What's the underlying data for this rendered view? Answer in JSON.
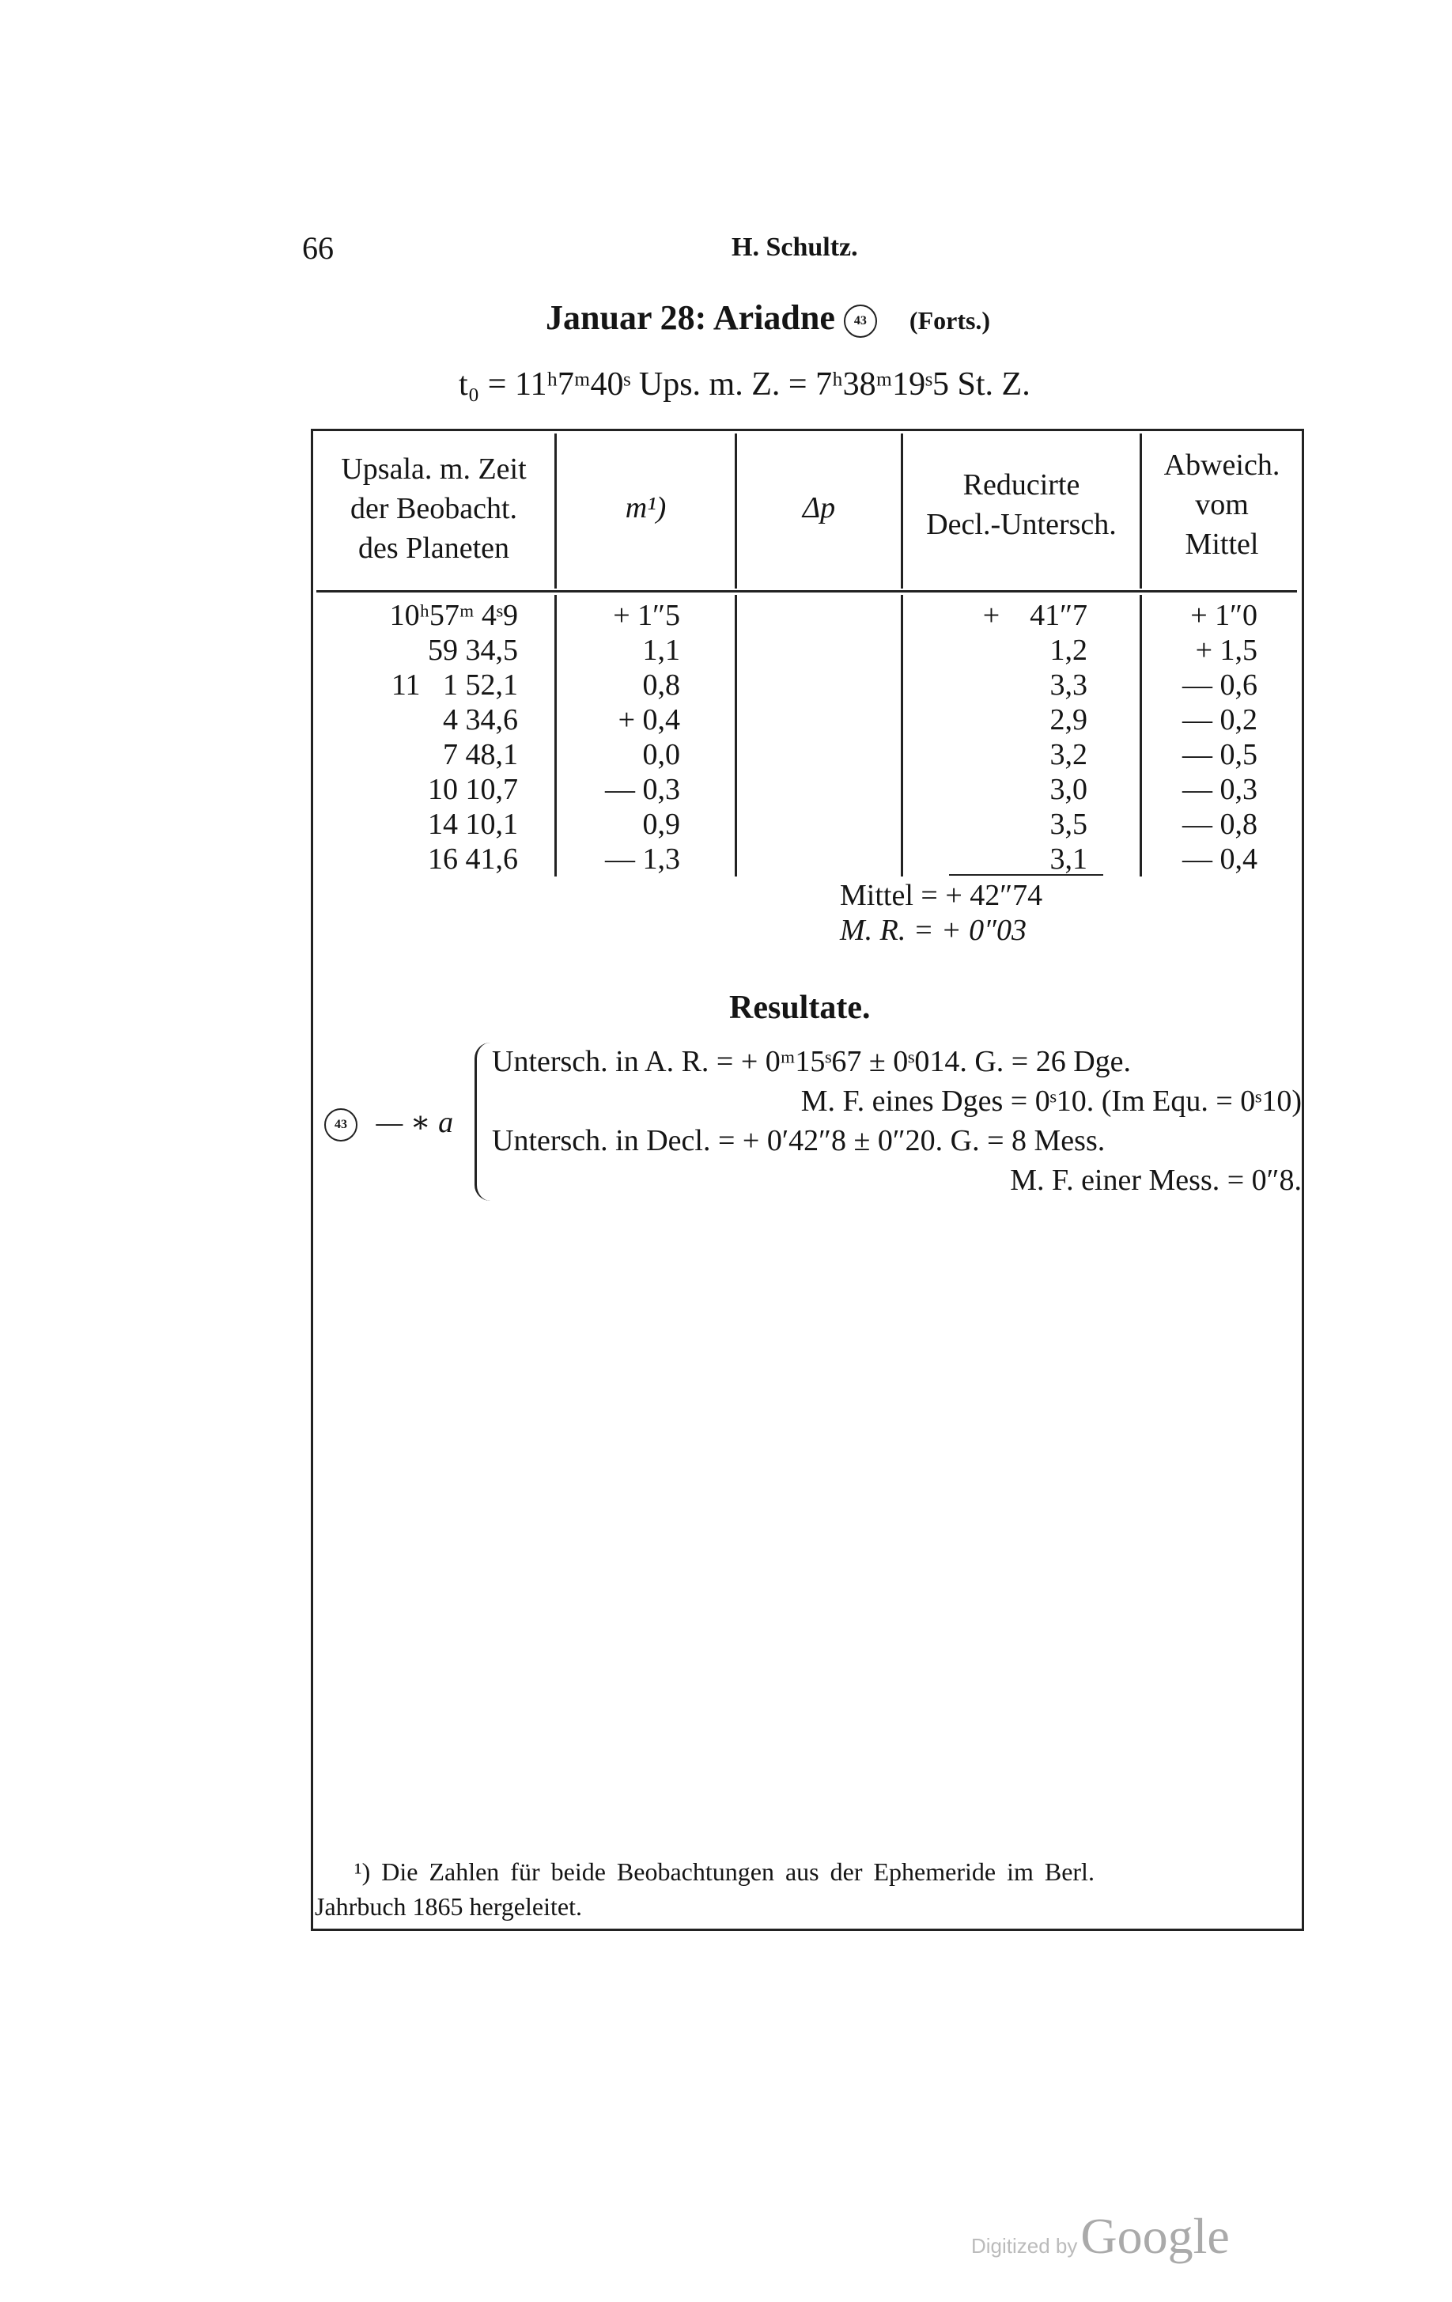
{
  "header": {
    "page_number": "66",
    "running_title": "H. Schultz."
  },
  "title": {
    "text": "Januar 28: Ariadne",
    "planet_symbol": "43",
    "suffix": "(Forts.)"
  },
  "epoch": {
    "text": "t₀ = 11ʰ7ᵐ40ˢ Ups. m. Z. = 7ʰ38ᵐ19ˢ5 St. Z."
  },
  "table": {
    "headers": [
      "Upsala. m. Zeit\nder Beobacht.\ndes Planeten",
      "m¹)",
      "Δp",
      "Reducirte\nDecl.-Untersch.",
      "Abweich.\nvom\nMittel"
    ],
    "rows": [
      [
        "10ʰ57ᵐ 4ˢ9",
        "+ 1″5",
        "",
        "+    41″7",
        "+ 1″0"
      ],
      [
        "59 34,5",
        "1,1",
        "",
        "1,2",
        "+ 1,5"
      ],
      [
        "11   1 52,1",
        "0,8",
        "",
        "3,3",
        "— 0,6"
      ],
      [
        "4 34,6",
        "+ 0,4",
        "",
        "2,9",
        "— 0,2"
      ],
      [
        "7 48,1",
        "0,0",
        "",
        "3,2",
        "— 0,5"
      ],
      [
        "10 10,7",
        "— 0,3",
        "",
        "3,0",
        "— 0,3"
      ],
      [
        "14 10,1",
        "0,9",
        "",
        "3,5",
        "— 0,8"
      ],
      [
        "16 41,6",
        "— 1,3",
        "",
        "3,1",
        "— 0,4"
      ]
    ],
    "mittel": "Mittel = + 42″74",
    "mr": "M. R. = +  0″03"
  },
  "results": {
    "heading": "Resultate.",
    "prefix": "— ∗ a",
    "planet_symbol": "43",
    "lines": [
      "Untersch. in A. R. = + 0ᵐ15ˢ67 ± 0ˢ014.  G. = 26 Dge.",
      "M. F. eines Dges = 0ˢ10. (Im Equ. = 0ˢ10)",
      "Untersch. in Decl. = + 0′42″8 ± 0″20.  G. = 8 Mess.",
      "M. F. einer Mess. = 0″8."
    ]
  },
  "footnote": {
    "line1": "¹) Die Zahlen für beide Beobachtungen aus der Ephemeride im Berl.",
    "line2": "Jahrbuch 1865 hergeleitet."
  },
  "watermark": {
    "prefix": "Digitized by",
    "brand": "Google"
  }
}
